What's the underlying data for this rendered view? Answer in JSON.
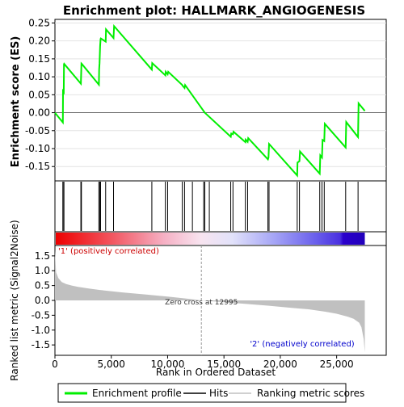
{
  "chart_data": {
    "type": "line",
    "title": "Enrichment plot: HALLMARK_ANGIOGENESIS",
    "es_panel": {
      "ylabel": "Enrichment score (ES)",
      "ylim": [
        -0.19,
        0.26
      ],
      "yticks": [
        -0.15,
        -0.1,
        -0.05,
        0.0,
        0.05,
        0.1,
        0.15,
        0.2,
        0.25
      ],
      "ytick_labels": [
        "-0.15",
        "-0.10",
        "-0.05",
        "0.00",
        "0.05",
        "0.10",
        "0.15",
        "0.20",
        "0.25"
      ],
      "series": [
        {
          "name": "Enrichment profile",
          "color": "#00ee00",
          "x": [
            0,
            700,
            720,
            780,
            800,
            820,
            2300,
            2350,
            2380,
            3900,
            3920,
            3960,
            3990,
            4010,
            4050,
            4070,
            4500,
            4530,
            5200,
            5250,
            8600,
            8630,
            9800,
            9830,
            10000,
            10050,
            11300,
            11330,
            11500,
            11550,
            13300,
            15600,
            15650,
            15800,
            15850,
            16900,
            16930,
            17100,
            17150,
            18900,
            18950,
            19000,
            21500,
            21530,
            21700,
            21750,
            23500,
            23550,
            23700,
            23750,
            23900,
            23950,
            25800,
            25850,
            26900,
            26950,
            27500
          ],
          "y": [
            0.0,
            -0.027,
            0.06,
            0.057,
            0.135,
            0.136,
            0.081,
            0.137,
            0.136,
            0.078,
            0.12,
            0.138,
            0.165,
            0.185,
            0.205,
            0.207,
            0.198,
            0.232,
            0.208,
            0.241,
            0.12,
            0.138,
            0.104,
            0.114,
            0.107,
            0.114,
            0.077,
            0.075,
            0.069,
            0.077,
            0.0,
            -0.067,
            -0.058,
            -0.06,
            -0.053,
            -0.082,
            -0.075,
            -0.081,
            -0.071,
            -0.13,
            -0.125,
            -0.087,
            -0.175,
            -0.139,
            -0.135,
            -0.108,
            -0.17,
            -0.119,
            -0.125,
            -0.076,
            -0.079,
            -0.031,
            -0.097,
            -0.026,
            -0.068,
            0.026,
            0.005
          ]
        }
      ]
    },
    "hits_panel": {
      "positions": [
        700,
        780,
        800,
        2300,
        2350,
        3900,
        3990,
        4050,
        4500,
        5200,
        8600,
        9800,
        10000,
        11300,
        11500,
        12200,
        13200,
        13300,
        13700,
        15600,
        15800,
        16900,
        17100,
        18900,
        19000,
        21500,
        21700,
        23500,
        23700,
        23900,
        25800,
        26900
      ]
    },
    "ranking_panel": {
      "ylabel": "Ranked list metric (Signal2Noise)",
      "xlabel": "Rank in Ordered Dataset",
      "ylim": [
        -1.85,
        1.85
      ],
      "yticks": [
        -1.5,
        -1.0,
        -0.5,
        0.0,
        0.5,
        1.0,
        1.5
      ],
      "ytick_labels": [
        "-1.5",
        "-1.0",
        "-0.5",
        "0.0",
        "0.5",
        "1.0",
        "1.5"
      ],
      "xlim": [
        0,
        29400
      ],
      "xticks": [
        0,
        5000,
        10000,
        15000,
        20000,
        25000
      ],
      "xtick_labels": [
        "0",
        "5,000",
        "10,000",
        "15,000",
        "20,000",
        "25,000"
      ],
      "metric_x": [
        0,
        100,
        300,
        600,
        1000,
        1500,
        2000,
        3000,
        4000,
        6000,
        8000,
        10000,
        12000,
        12995,
        15000,
        17000,
        19000,
        21000,
        22500,
        24000,
        25000,
        26000,
        26500,
        27000,
        27200,
        27400,
        27500
      ],
      "metric_y": [
        1.7,
        0.95,
        0.75,
        0.62,
        0.55,
        0.5,
        0.46,
        0.4,
        0.35,
        0.27,
        0.2,
        0.13,
        0.05,
        0.0,
        -0.06,
        -0.12,
        -0.18,
        -0.25,
        -0.3,
        -0.38,
        -0.45,
        -0.55,
        -0.62,
        -0.75,
        -0.9,
        -1.3,
        -1.75
      ],
      "zero_cross_x": 12995,
      "zero_cross_label": "Zero cross at 12995",
      "positive_label": "'1' (positively correlated)",
      "negative_label": "'2' (negatively correlated)",
      "positive_color": "#cc0000",
      "negative_color": "#0000cc"
    },
    "legend": {
      "placement": "bottom",
      "entries": [
        {
          "label": "Enrichment profile",
          "color": "#00ee00"
        },
        {
          "label": "Hits",
          "color": "#000000"
        },
        {
          "label": "Ranking metric scores",
          "color": "#c0c0c0"
        }
      ]
    }
  }
}
